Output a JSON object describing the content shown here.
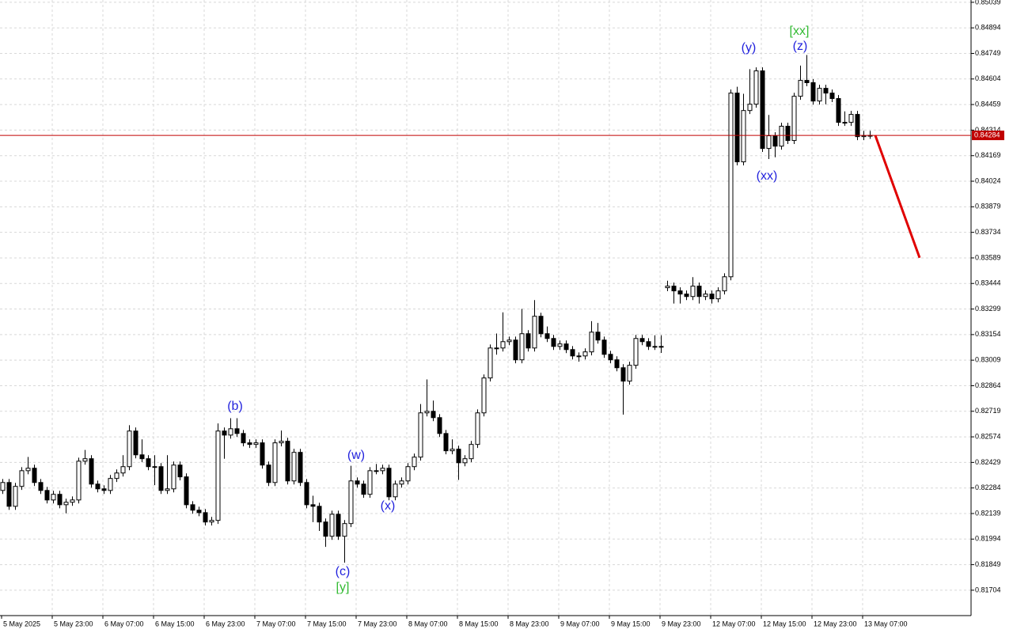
{
  "chart_data": {
    "type": "candlestick",
    "categories": [
      "5 May 2025",
      null,
      null,
      null,
      null,
      null,
      null,
      null,
      "5 May 23:00",
      null,
      null,
      null,
      null,
      null,
      null,
      null,
      "6 May 07:00",
      null,
      null,
      null,
      null,
      null,
      null,
      null,
      "6 May 15:00",
      null,
      null,
      null,
      null,
      null,
      null,
      null,
      "6 May 23:00",
      null,
      null,
      null,
      null,
      null,
      null,
      null,
      "7 May 07:00",
      null,
      null,
      null,
      null,
      null,
      null,
      null,
      "7 May 15:00",
      null,
      null,
      null,
      null,
      null,
      null,
      null,
      "7 May 23:00",
      null,
      null,
      null,
      null,
      null,
      null,
      null,
      "8 May 07:00",
      null,
      null,
      null,
      null,
      null,
      null,
      null,
      "8 May 15:00",
      null,
      null,
      null,
      null,
      null,
      null,
      null,
      "8 May 23:00",
      null,
      null,
      null,
      null,
      null,
      null,
      null,
      "9 May 07:00",
      null,
      null,
      null,
      null,
      null,
      null,
      null,
      "9 May 15:00",
      null,
      null,
      null,
      null,
      null,
      null,
      null,
      "9 May 23:00",
      null,
      null,
      null,
      null,
      null,
      null,
      null,
      "12 May 07:00",
      null,
      null,
      null,
      null,
      null,
      null,
      null,
      "12 May 15:00",
      null,
      null,
      null,
      null,
      null,
      null,
      null,
      "12 May 23:00",
      null,
      null,
      null,
      null,
      null,
      null,
      null,
      "13 May 07:00",
      null
    ],
    "open": [
      0.8227,
      0.82315,
      0.8218,
      0.82293,
      0.82382,
      0.82396,
      0.82315,
      0.8227,
      0.82216,
      0.82248,
      0.82189,
      0.82203,
      0.82216,
      0.82436,
      0.8245,
      0.82306,
      0.82279,
      0.8227,
      0.82338,
      0.82369,
      0.82405,
      0.82607,
      0.82472,
      0.8245,
      0.82405,
      0.82405,
      0.8227,
      0.82279,
      0.82414,
      0.82347,
      0.82189,
      0.82158,
      0.82144,
      0.82091,
      0.821,
      0.82607,
      0.82584,
      0.8262,
      0.82593,
      0.8254,
      0.82531,
      0.8254,
      0.82414,
      0.82315,
      0.8254,
      0.82549,
      0.82324,
      0.82486,
      0.82315,
      0.82189,
      0.8218,
      0.82091,
      0.8201,
      0.82135,
      0.8201,
      0.82082,
      0.82324,
      0.82306,
      0.82248,
      0.82382,
      0.82382,
      0.82396,
      0.82234,
      0.82306,
      0.82324,
      0.82405,
      0.82459,
      0.8271,
      0.82719,
      0.82683,
      0.82593,
      0.82495,
      0.82504,
      0.82427,
      0.8245,
      0.82531,
      0.8271,
      0.82908,
      0.83078,
      0.83078,
      0.83114,
      0.83123,
      0.83011,
      0.83159,
      0.83078,
      0.83258,
      0.83159,
      0.83132,
      0.83087,
      0.83101,
      0.83069,
      0.83033,
      0.83033,
      0.83056,
      0.83168,
      0.83123,
      0.83042,
      0.83011,
      0.82966,
      0.8289,
      0.8298,
      0.83132,
      0.83114,
      0.83087,
      0.83087,
      0.8342,
      0.83429,
      0.83402,
      0.83384,
      0.8337,
      0.83429,
      0.8337,
      0.83384,
      0.83357,
      0.83402,
      0.83482,
      0.84524,
      0.84134,
      0.84425,
      0.84461,
      0.8465,
      0.8421,
      0.84282,
      0.84223,
      0.84336,
      0.84255,
      0.84506,
      0.84596,
      0.84583,
      0.84479,
      0.84551,
      0.84524,
      0.84493,
      0.84358,
      0.84358,
      0.84403,
      0.84277,
      0.84282
    ],
    "high": [
      0.82335,
      0.82335,
      0.82313,
      0.82402,
      0.8246,
      0.82416,
      0.82335,
      0.8229,
      0.82268,
      0.82268,
      0.82223,
      0.82236,
      0.82456,
      0.825,
      0.8247,
      0.82326,
      0.82299,
      0.82358,
      0.82389,
      0.8247,
      0.8264,
      0.82627,
      0.8256,
      0.8247,
      0.8247,
      0.82425,
      0.8247,
      0.82434,
      0.82434,
      0.82367,
      0.82209,
      0.82178,
      0.82164,
      0.8212,
      0.8265,
      0.82627,
      0.8268,
      0.8268,
      0.82613,
      0.8256,
      0.8256,
      0.8256,
      0.82434,
      0.8256,
      0.8261,
      0.82569,
      0.82506,
      0.82506,
      0.82335,
      0.8224,
      0.822,
      0.82111,
      0.82155,
      0.82155,
      0.82102,
      0.8241,
      0.82344,
      0.82326,
      0.82402,
      0.8242,
      0.82416,
      0.82416,
      0.82326,
      0.82344,
      0.82425,
      0.82479,
      0.8276,
      0.829,
      0.8278,
      0.82703,
      0.82613,
      0.8256,
      0.82524,
      0.8247,
      0.82551,
      0.8273,
      0.82928,
      0.83098,
      0.8316,
      0.8328,
      0.83143,
      0.83143,
      0.833,
      0.83179,
      0.8335,
      0.83278,
      0.832,
      0.83152,
      0.83121,
      0.83121,
      0.83089,
      0.83053,
      0.83076,
      0.8323,
      0.8322,
      0.83143,
      0.83062,
      0.83031,
      0.82986,
      0.83,
      0.83152,
      0.83152,
      0.83134,
      0.8315,
      0.8315,
      0.8346,
      0.83449,
      0.83422,
      0.83404,
      0.8348,
      0.83449,
      0.83404,
      0.83404,
      0.83422,
      0.83502,
      0.84544,
      0.8456,
      0.8452,
      0.8466,
      0.8467,
      0.8467,
      0.844,
      0.84302,
      0.84356,
      0.84356,
      0.84526,
      0.8468,
      0.8474,
      0.84603,
      0.84571,
      0.84571,
      0.84544,
      0.84513,
      0.8442,
      0.84423,
      0.84423,
      0.8431,
      0.8431
    ],
    "low": [
      0.8225,
      0.8216,
      0.8216,
      0.82273,
      0.82362,
      0.82295,
      0.8225,
      0.82196,
      0.82196,
      0.82169,
      0.8214,
      0.82183,
      0.82196,
      0.82416,
      0.82286,
      0.82259,
      0.8225,
      0.8225,
      0.82318,
      0.82349,
      0.82385,
      0.82452,
      0.8243,
      0.82385,
      0.823,
      0.8225,
      0.8225,
      0.82259,
      0.82327,
      0.82169,
      0.82138,
      0.82124,
      0.82071,
      0.82071,
      0.8208,
      0.8245,
      0.82564,
      0.82573,
      0.8252,
      0.82511,
      0.82511,
      0.82394,
      0.82295,
      0.82295,
      0.8252,
      0.82304,
      0.82304,
      0.82295,
      0.82169,
      0.8209,
      0.8204,
      0.8195,
      0.8199,
      0.8199,
      0.8186,
      0.82062,
      0.82286,
      0.82228,
      0.82228,
      0.82362,
      0.82362,
      0.82214,
      0.82214,
      0.82286,
      0.82304,
      0.82385,
      0.82439,
      0.8269,
      0.82663,
      0.82573,
      0.82475,
      0.82475,
      0.8233,
      0.82407,
      0.8243,
      0.82511,
      0.8269,
      0.82888,
      0.8304,
      0.83058,
      0.83094,
      0.82991,
      0.82991,
      0.83058,
      0.83058,
      0.83139,
      0.83112,
      0.83067,
      0.83067,
      0.83049,
      0.83013,
      0.83,
      0.83013,
      0.83036,
      0.83103,
      0.83022,
      0.82991,
      0.82946,
      0.827,
      0.8287,
      0.8296,
      0.83094,
      0.83067,
      0.83067,
      0.8305,
      0.834,
      0.8333,
      0.8333,
      0.8335,
      0.8335,
      0.8333,
      0.8335,
      0.8333,
      0.83337,
      0.83382,
      0.83462,
      0.84114,
      0.84114,
      0.84405,
      0.84441,
      0.8419,
      0.8415,
      0.8416,
      0.84203,
      0.84235,
      0.84235,
      0.84486,
      0.84563,
      0.84459,
      0.84459,
      0.8446,
      0.84473,
      0.84338,
      0.84338,
      0.84338,
      0.84257,
      0.84257,
      0.84264
    ],
    "close": [
      0.82315,
      0.8218,
      0.82293,
      0.82382,
      0.82396,
      0.82315,
      0.8227,
      0.82216,
      0.82248,
      0.82189,
      0.82203,
      0.82216,
      0.82436,
      0.8245,
      0.82306,
      0.82279,
      0.8227,
      0.82338,
      0.82369,
      0.82405,
      0.82607,
      0.82472,
      0.8245,
      0.82405,
      0.82405,
      0.8227,
      0.82279,
      0.82414,
      0.82347,
      0.82189,
      0.82158,
      0.82144,
      0.82091,
      0.821,
      0.82607,
      0.82584,
      0.8262,
      0.82593,
      0.8254,
      0.82531,
      0.8254,
      0.82414,
      0.82315,
      0.8254,
      0.82549,
      0.82324,
      0.82486,
      0.82315,
      0.82189,
      0.8218,
      0.82091,
      0.8201,
      0.82135,
      0.8201,
      0.82082,
      0.82324,
      0.82306,
      0.82248,
      0.82382,
      0.82382,
      0.82396,
      0.82234,
      0.82306,
      0.82324,
      0.82405,
      0.82459,
      0.8271,
      0.82719,
      0.82683,
      0.82593,
      0.82495,
      0.82504,
      0.82427,
      0.8245,
      0.82531,
      0.8271,
      0.82908,
      0.83078,
      0.83078,
      0.83114,
      0.83123,
      0.83011,
      0.83159,
      0.83078,
      0.83258,
      0.83159,
      0.83132,
      0.83087,
      0.83101,
      0.83069,
      0.83033,
      0.83033,
      0.83056,
      0.83168,
      0.83123,
      0.83042,
      0.83011,
      0.82966,
      0.8289,
      0.8298,
      0.83132,
      0.83114,
      0.83087,
      0.83087,
      0.83087,
      0.83429,
      0.83402,
      0.83384,
      0.8337,
      0.83429,
      0.8337,
      0.83384,
      0.83357,
      0.83402,
      0.83482,
      0.84524,
      0.84134,
      0.84425,
      0.84461,
      0.8465,
      0.8421,
      0.84282,
      0.84223,
      0.84336,
      0.84255,
      0.84506,
      0.84596,
      0.84583,
      0.84479,
      0.84551,
      0.84524,
      0.84493,
      0.84358,
      0.84358,
      0.84403,
      0.84277,
      0.84282,
      0.84284
    ],
    "ylim": [
      0.8156,
      0.85052
    ],
    "yticks": [
      0.81704,
      0.81849,
      0.81994,
      0.82139,
      0.82284,
      0.82429,
      0.82574,
      0.82719,
      0.82864,
      0.83009,
      0.83154,
      0.83299,
      0.83444,
      0.83589,
      0.83734,
      0.83879,
      0.84024,
      0.84169,
      0.84314,
      0.84459,
      0.84604,
      0.84749,
      0.84894,
      0.85039
    ],
    "grid": true,
    "current_price": {
      "value": 0.84284,
      "label": "0.84284",
      "color": "#c00000"
    },
    "forecast_line": {
      "start": 0.84284,
      "end": 0.8359,
      "color": "#e00000"
    },
    "annotations": [
      {
        "text": "(b)",
        "color": "#2222dd"
      },
      {
        "text": "(w)",
        "color": "#2222dd"
      },
      {
        "text": "(x)",
        "color": "#2222dd"
      },
      {
        "text": "(c)",
        "color": "#2222dd"
      },
      {
        "text": "[y]",
        "color": "#33bb33"
      },
      {
        "text": "(y)",
        "color": "#2222dd"
      },
      {
        "text": "(xx)",
        "color": "#2222dd"
      },
      {
        "text": "(z)",
        "color": "#2222dd"
      },
      {
        "text": "[xx]",
        "color": "#33bb33"
      }
    ]
  }
}
